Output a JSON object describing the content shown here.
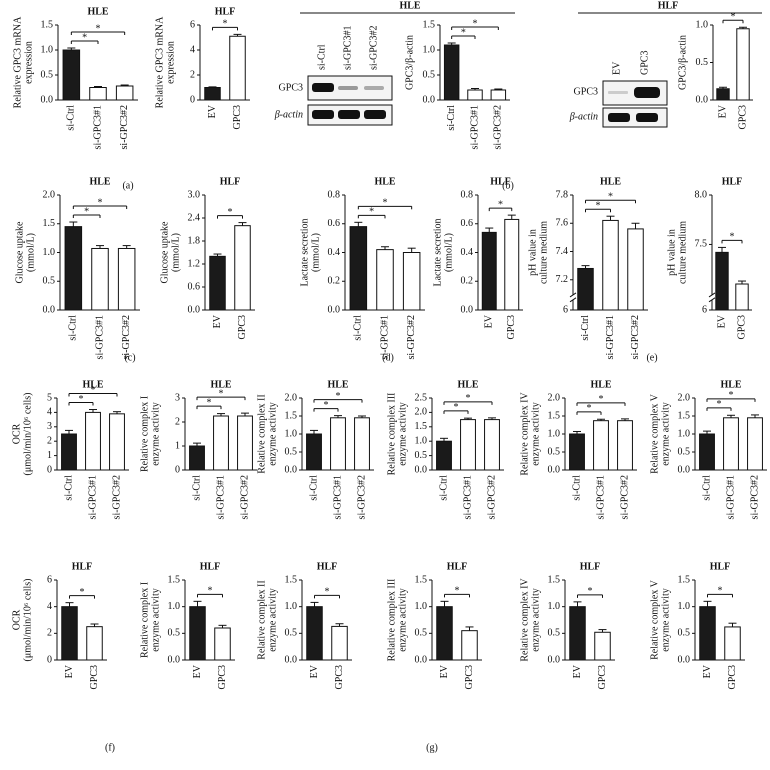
{
  "chart_data": [
    {
      "type": "bar",
      "title": "HLE",
      "ylabel": [
        "Relative GPC3 mRNA",
        "expression"
      ],
      "categories": [
        "si-Ctrl",
        "si-GPC3#1",
        "si-GPC3#2"
      ],
      "values": [
        1.0,
        0.25,
        0.28
      ],
      "errors": [
        0.04,
        0.02,
        0.02
      ],
      "colors": [
        "#1a1a1a",
        "#ffffff",
        "#ffffff"
      ],
      "ylim": [
        0,
        1.5
      ],
      "yticks": [
        {
          "value": 0,
          "label": "0.0"
        },
        0.5,
        {
          "value": 1,
          "label": "1.0"
        },
        1.5
      ],
      "annotations": [
        {
          "text": "*",
          "from": "si-Ctrl",
          "to": "si-GPC3#1"
        },
        {
          "text": "*",
          "from": "si-Ctrl",
          "to": "si-GPC3#2"
        }
      ]
    },
    {
      "type": "bar",
      "title": "HLF",
      "ylabel": [
        "Relative GPC3 mRNA",
        "expression"
      ],
      "categories": [
        "EV",
        "GPC3"
      ],
      "values": [
        1.0,
        5.1
      ],
      "errors": [
        0.05,
        0.15
      ],
      "colors": [
        "#1a1a1a",
        "#ffffff"
      ],
      "ylim": [
        0,
        6
      ],
      "yticks": [
        0,
        2,
        4,
        6
      ],
      "annotations": [
        {
          "text": "*",
          "from": "EV",
          "to": "GPC3"
        }
      ]
    },
    {
      "type": "bar",
      "ylabel": [
        "GPC3/β-actin"
      ],
      "categories": [
        "si-Ctrl",
        "si-GPC3#1",
        "si-GPC3#2"
      ],
      "values": [
        1.1,
        0.2,
        0.2
      ],
      "errors": [
        0.04,
        0.03,
        0.02
      ],
      "colors": [
        "#1a1a1a",
        "#ffffff",
        "#ffffff"
      ],
      "ylim": [
        0,
        1.5
      ],
      "yticks": [
        {
          "value": 0,
          "label": "0.0"
        },
        0.5,
        {
          "value": 1,
          "label": "1.0"
        },
        1.5
      ],
      "annotations": [
        {
          "text": "*",
          "from": "si-Ctrl",
          "to": "si-GPC3#1"
        },
        {
          "text": "*",
          "from": "si-Ctrl",
          "to": "si-GPC3#2"
        }
      ]
    },
    {
      "type": "bar",
      "ylabel": [
        "GPC3/β-actin"
      ],
      "categories": [
        "EV",
        "GPC3"
      ],
      "values": [
        0.15,
        0.95
      ],
      "errors": [
        0.02,
        0.02
      ],
      "colors": [
        "#1a1a1a",
        "#ffffff"
      ],
      "ylim": [
        0,
        1
      ],
      "yticks": [
        {
          "value": 0,
          "label": "0.0"
        },
        0.5,
        {
          "value": 1,
          "label": "1.0"
        }
      ],
      "annotations": [
        {
          "text": "*",
          "from": "EV",
          "to": "GPC3"
        }
      ]
    },
    {
      "type": "bar",
      "title": "HLE",
      "ylabel": [
        "Glucose uptake",
        "(mmol/L)"
      ],
      "categories": [
        "si-Ctrl",
        "si-GPC3#1",
        "si-GPC3#2"
      ],
      "values": [
        1.45,
        1.07,
        1.07
      ],
      "errors": [
        0.08,
        0.05,
        0.05
      ],
      "colors": [
        "#1a1a1a",
        "#ffffff",
        "#ffffff"
      ],
      "ylim": [
        0,
        2
      ],
      "yticks": [
        {
          "value": 0,
          "label": "0.0"
        },
        0.5,
        {
          "value": 1,
          "label": "1.0"
        },
        1.5,
        {
          "value": 2,
          "label": "2.0"
        }
      ],
      "annotations": [
        {
          "text": "*",
          "from": "si-Ctrl",
          "to": "si-GPC3#1"
        },
        {
          "text": "*",
          "from": "si-Ctrl",
          "to": "si-GPC3#2"
        }
      ]
    },
    {
      "type": "bar",
      "title": "HLF",
      "ylabel": [
        "Glucose uptake",
        "(mmol/L)"
      ],
      "categories": [
        "EV",
        "GPC3"
      ],
      "values": [
        1.4,
        2.2
      ],
      "errors": [
        0.06,
        0.08
      ],
      "colors": [
        "#1a1a1a",
        "#ffffff"
      ],
      "ylim": [
        0,
        3
      ],
      "yticks": [
        {
          "value": 0,
          "label": "0.0"
        },
        0.6,
        1.2,
        1.8,
        2.4,
        {
          "value": 3,
          "label": "3.0"
        }
      ],
      "annotations": [
        {
          "text": "*",
          "from": "EV",
          "to": "GPC3"
        }
      ]
    },
    {
      "type": "bar",
      "title": "HLE",
      "ylabel": [
        "Lactate secretion",
        "(mmol/L)"
      ],
      "categories": [
        "si-Ctrl",
        "si-GPC3#1",
        "si-GPC3#2"
      ],
      "values": [
        0.58,
        0.42,
        0.4
      ],
      "errors": [
        0.03,
        0.02,
        0.03
      ],
      "colors": [
        "#1a1a1a",
        "#ffffff",
        "#ffffff"
      ],
      "ylim": [
        0,
        0.8
      ],
      "yticks": [
        {
          "value": 0,
          "label": "0.0"
        },
        0.2,
        0.4,
        0.6,
        0.8
      ],
      "annotations": [
        {
          "text": "*",
          "from": "si-Ctrl",
          "to": "si-GPC3#1"
        },
        {
          "text": "*",
          "from": "si-Ctrl",
          "to": "si-GPC3#2"
        }
      ]
    },
    {
      "type": "bar",
      "title": "HLF",
      "ylabel": [
        "Lactate secretion",
        "(mmol/L)"
      ],
      "categories": [
        "EV",
        "GPC3"
      ],
      "values": [
        0.54,
        0.63
      ],
      "errors": [
        0.03,
        0.03
      ],
      "colors": [
        "#1a1a1a",
        "#ffffff"
      ],
      "ylim": [
        0,
        0.8
      ],
      "yticks": [
        {
          "value": 0,
          "label": "0.0"
        },
        0.2,
        0.4,
        0.6,
        0.8
      ],
      "annotations": [
        {
          "text": "*",
          "from": "EV",
          "to": "GPC3"
        }
      ]
    },
    {
      "type": "bar",
      "title": "HLE",
      "ylabel": [
        "pH value in",
        "culture medium"
      ],
      "categories": [
        "si-Ctrl",
        "si-GPC3#1",
        "si-GPC3#2"
      ],
      "values": [
        7.28,
        7.62,
        7.56
      ],
      "errors": [
        0.02,
        0.03,
        0.04
      ],
      "colors": [
        "#1a1a1a",
        "#ffffff",
        "#ffffff"
      ],
      "ylim": [
        6,
        7.8
      ],
      "ybreak": [
        6.05,
        7.1
      ],
      "yticks": [
        6,
        7.2,
        7.4,
        7.6,
        7.8
      ],
      "annotations": [
        {
          "text": "*",
          "from": "si-Ctrl",
          "to": "si-GPC3#1"
        },
        {
          "text": "*",
          "from": "si-Ctrl",
          "to": "si-GPC3#2"
        }
      ]
    },
    {
      "type": "bar",
      "title": "HLF",
      "ylabel": [
        "pH value in",
        "culture medium"
      ],
      "categories": [
        "EV",
        "GPC3"
      ],
      "values": [
        7.42,
        7.1
      ],
      "errors": [
        0.05,
        0.03
      ],
      "colors": [
        "#1a1a1a",
        "#ffffff"
      ],
      "ylim": [
        6,
        8
      ],
      "ybreak": [
        6.05,
        7.0
      ],
      "yticks": [
        6,
        7.5,
        {
          "value": 8,
          "label": "8.0"
        }
      ],
      "annotations": [
        {
          "text": "*",
          "from": "EV",
          "to": "GPC3"
        }
      ]
    },
    {
      "type": "bar",
      "title": "HLE",
      "ylabel": [
        "OCR",
        "(μmol/min/10⁶ cells)"
      ],
      "categories": [
        "si-Ctrl",
        "si-GPC3#1",
        "si-GPC3#2"
      ],
      "values": [
        2.5,
        4.0,
        3.9
      ],
      "errors": [
        0.25,
        0.2,
        0.15
      ],
      "colors": [
        "#1a1a1a",
        "#ffffff",
        "#ffffff"
      ],
      "ylim": [
        0,
        5
      ],
      "yticks": [
        0,
        1,
        2,
        3,
        4,
        5
      ],
      "annotations": [
        {
          "text": "*",
          "from": "si-Ctrl",
          "to": "si-GPC3#1"
        },
        {
          "text": "*",
          "from": "si-Ctrl",
          "to": "si-GPC3#2"
        }
      ]
    },
    {
      "type": "bar",
      "title": "HLE",
      "ylabel": [
        "Relative complex I",
        "enzyme activity"
      ],
      "categories": [
        "si-Ctrl",
        "si-GPC3#1",
        "si-GPC3#2"
      ],
      "values": [
        1.0,
        2.25,
        2.25
      ],
      "errors": [
        0.12,
        0.1,
        0.12
      ],
      "colors": [
        "#1a1a1a",
        "#ffffff",
        "#ffffff"
      ],
      "ylim": [
        0,
        3
      ],
      "yticks": [
        0,
        1,
        2,
        3
      ],
      "annotations": [
        {
          "text": "*",
          "from": "si-Ctrl",
          "to": "si-GPC3#1"
        },
        {
          "text": "*",
          "from": "si-Ctrl",
          "to": "si-GPC3#2"
        }
      ]
    },
    {
      "type": "bar",
      "title": "HLE",
      "ylabel": [
        "Relative complex II",
        "enzyme activity"
      ],
      "categories": [
        "si-Ctrl",
        "si-GPC3#1",
        "si-GPC3#2"
      ],
      "values": [
        1.0,
        1.45,
        1.45
      ],
      "errors": [
        0.1,
        0.06,
        0.05
      ],
      "colors": [
        "#1a1a1a",
        "#ffffff",
        "#ffffff"
      ],
      "ylim": [
        0,
        2
      ],
      "yticks": [
        {
          "value": 0,
          "label": "0.0"
        },
        0.5,
        {
          "value": 1,
          "label": "1.0"
        },
        1.5,
        {
          "value": 2,
          "label": "2.0"
        }
      ],
      "annotations": [
        {
          "text": "*",
          "from": "si-Ctrl",
          "to": "si-GPC3#1"
        },
        {
          "text": "*",
          "from": "si-Ctrl",
          "to": "si-GPC3#2"
        }
      ]
    },
    {
      "type": "bar",
      "title": "HLE",
      "ylabel": [
        "Relative complex III",
        "enzyme activity"
      ],
      "categories": [
        "si-Ctrl",
        "si-GPC3#1",
        "si-GPC3#2"
      ],
      "values": [
        1.0,
        1.75,
        1.75
      ],
      "errors": [
        0.1,
        0.05,
        0.06
      ],
      "colors": [
        "#1a1a1a",
        "#ffffff",
        "#ffffff"
      ],
      "ylim": [
        0,
        2.5
      ],
      "yticks": [
        {
          "value": 0,
          "label": "0.0"
        },
        0.5,
        {
          "value": 1,
          "label": "1.0"
        },
        1.5,
        {
          "value": 2,
          "label": "2.0"
        },
        2.5
      ],
      "annotations": [
        {
          "text": "*",
          "from": "si-Ctrl",
          "to": "si-GPC3#1"
        },
        {
          "text": "*",
          "from": "si-Ctrl",
          "to": "si-GPC3#2"
        }
      ]
    },
    {
      "type": "bar",
      "title": "HLE",
      "ylabel": [
        "Relative complex IV",
        "enzyme activity"
      ],
      "categories": [
        "si-Ctrl",
        "si-GPC3#1",
        "si-GPC3#2"
      ],
      "values": [
        1.0,
        1.37,
        1.37
      ],
      "errors": [
        0.07,
        0.04,
        0.05
      ],
      "colors": [
        "#1a1a1a",
        "#ffffff",
        "#ffffff"
      ],
      "ylim": [
        0,
        2
      ],
      "yticks": [
        {
          "value": 0,
          "label": "0.0"
        },
        0.5,
        {
          "value": 1,
          "label": "1.0"
        },
        1.5,
        {
          "value": 2,
          "label": "2.0"
        }
      ],
      "annotations": [
        {
          "text": "*",
          "from": "si-Ctrl",
          "to": "si-GPC3#1"
        },
        {
          "text": "*",
          "from": "si-Ctrl",
          "to": "si-GPC3#2"
        }
      ]
    },
    {
      "type": "bar",
      "title": "HLE",
      "ylabel": [
        "Relative complex V",
        "enzyme activity"
      ],
      "categories": [
        "si-Ctrl",
        "si-GPC3#1",
        "si-GPC3#2"
      ],
      "values": [
        1.0,
        1.45,
        1.45
      ],
      "errors": [
        0.08,
        0.07,
        0.08
      ],
      "colors": [
        "#1a1a1a",
        "#ffffff",
        "#ffffff"
      ],
      "ylim": [
        0,
        2
      ],
      "yticks": [
        {
          "value": 0,
          "label": "0.0"
        },
        0.5,
        {
          "value": 1,
          "label": "1.0"
        },
        1.5,
        {
          "value": 2,
          "label": "2.0"
        }
      ],
      "annotations": [
        {
          "text": "*",
          "from": "si-Ctrl",
          "to": "si-GPC3#1"
        },
        {
          "text": "*",
          "from": "si-Ctrl",
          "to": "si-GPC3#2"
        }
      ]
    },
    {
      "type": "bar",
      "title": "HLF",
      "ylabel": [
        "OCR",
        "(μmol/min/10⁶ cells)"
      ],
      "categories": [
        "EV",
        "GPC3"
      ],
      "values": [
        4.0,
        2.5
      ],
      "errors": [
        0.3,
        0.2
      ],
      "colors": [
        "#1a1a1a",
        "#ffffff"
      ],
      "ylim": [
        0,
        6
      ],
      "yticks": [
        0,
        2,
        4,
        6
      ],
      "annotations": [
        {
          "text": "*",
          "from": "EV",
          "to": "GPC3"
        }
      ]
    },
    {
      "type": "bar",
      "title": "HLF",
      "ylabel": [
        "Relative complex I",
        "enzyme activity"
      ],
      "categories": [
        "EV",
        "GPC3"
      ],
      "values": [
        1.0,
        0.6
      ],
      "errors": [
        0.1,
        0.05
      ],
      "colors": [
        "#1a1a1a",
        "#ffffff"
      ],
      "ylim": [
        0,
        1.5
      ],
      "yticks": [
        {
          "value": 0,
          "label": "0.0"
        },
        0.5,
        {
          "value": 1,
          "label": "1.0"
        },
        1.5
      ],
      "annotations": [
        {
          "text": "*",
          "from": "EV",
          "to": "GPC3"
        }
      ]
    },
    {
      "type": "bar",
      "title": "HLF",
      "ylabel": [
        "Relative complex II",
        "enzyme activity"
      ],
      "categories": [
        "EV",
        "GPC3"
      ],
      "values": [
        1.0,
        0.63
      ],
      "errors": [
        0.08,
        0.05
      ],
      "colors": [
        "#1a1a1a",
        "#ffffff"
      ],
      "ylim": [
        0,
        1.5
      ],
      "yticks": [
        {
          "value": 0,
          "label": "0.0"
        },
        0.5,
        {
          "value": 1,
          "label": "1.0"
        },
        1.5
      ],
      "annotations": [
        {
          "text": "*",
          "from": "EV",
          "to": "GPC3"
        }
      ]
    },
    {
      "type": "bar",
      "title": "HLF",
      "ylabel": [
        "Relative complex III",
        "enzyme activity"
      ],
      "categories": [
        "EV",
        "GPC3"
      ],
      "values": [
        1.0,
        0.55
      ],
      "errors": [
        0.1,
        0.07
      ],
      "colors": [
        "#1a1a1a",
        "#ffffff"
      ],
      "ylim": [
        0,
        1.5
      ],
      "yticks": [
        {
          "value": 0,
          "label": "0.0"
        },
        0.5,
        {
          "value": 1,
          "label": "1.0"
        },
        1.5
      ],
      "annotations": [
        {
          "text": "*",
          "from": "EV",
          "to": "GPC3"
        }
      ]
    },
    {
      "type": "bar",
      "title": "HLF",
      "ylabel": [
        "Relative complex IV",
        "enzyme activity"
      ],
      "categories": [
        "EV",
        "GPC3"
      ],
      "values": [
        1.0,
        0.52
      ],
      "errors": [
        0.09,
        0.05
      ],
      "colors": [
        "#1a1a1a",
        "#ffffff"
      ],
      "ylim": [
        0,
        1.5
      ],
      "yticks": [
        {
          "value": 0,
          "label": "0.0"
        },
        0.5,
        {
          "value": 1,
          "label": "1.0"
        },
        1.5
      ],
      "annotations": [
        {
          "text": "*",
          "from": "EV",
          "to": "GPC3"
        }
      ]
    },
    {
      "type": "bar",
      "title": "HLF",
      "ylabel": [
        "Relative complex V",
        "enzyme activity"
      ],
      "categories": [
        "EV",
        "GPC3"
      ],
      "values": [
        1.0,
        0.62
      ],
      "errors": [
        0.1,
        0.07
      ],
      "colors": [
        "#1a1a1a",
        "#ffffff"
      ],
      "ylim": [
        0,
        1.5
      ],
      "yticks": [
        {
          "value": 0,
          "label": "0.0"
        },
        0.5,
        {
          "value": 1,
          "label": "1.0"
        },
        1.5
      ],
      "annotations": [
        {
          "text": "*",
          "from": "EV",
          "to": "GPC3"
        }
      ]
    }
  ],
  "blots": [
    {
      "title": "HLE",
      "lanes": [
        "si-Ctrl",
        "si-GPC3#1",
        "si-GPC3#2"
      ],
      "rows": [
        "GPC3",
        "β-actin"
      ]
    },
    {
      "title": "HLF",
      "lanes": [
        "EV",
        "GPC3"
      ],
      "rows": [
        "GPC3",
        "β-actin"
      ]
    }
  ],
  "panel_labels": [
    "(a)",
    "(b)",
    "(c)",
    "(d)",
    "(e)",
    "(f)",
    "(g)"
  ]
}
